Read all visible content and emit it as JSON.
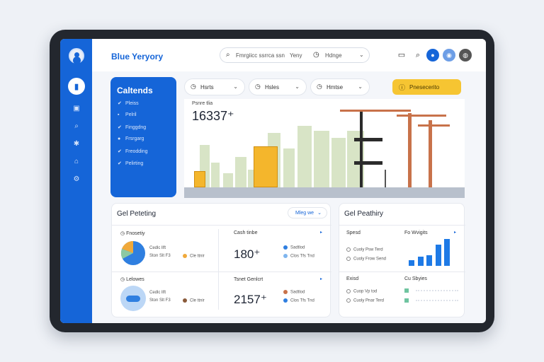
{
  "topbar": {
    "brand": "Blue Yeryory",
    "search": {
      "text": "Fmrgiicc ssrrca ssn",
      "filter_a": "Yeny",
      "filter_b": "Hdnge"
    }
  },
  "categories": {
    "title": "Caltends",
    "items": [
      "Pleiss",
      "Pelril",
      "Finggdng",
      "Frsrgarg",
      "Freodding",
      "Pelirting"
    ]
  },
  "filters": [
    {
      "label": "Hsrts"
    },
    {
      "label": "Hsles"
    },
    {
      "label": "Hmtse"
    }
  ],
  "report_button": {
    "label": "Pnesecerito"
  },
  "hero": {
    "label": "Psnre tlia",
    "value": "16337⁺"
  },
  "left_panel": {
    "title": "Gel Peteting",
    "dropdown": "Mleg we",
    "top": {
      "subtitle": "Fnosetiy",
      "info_line1": "Cedlc llft",
      "info_line2": "Ston Slt F3",
      "legend1": "Cle ttnir",
      "stat_title": "Cash tinbe",
      "stat_value": "180⁺",
      "legend_a": "Sadtlod",
      "legend_b": "Clos Tfs Tnd"
    },
    "bottom": {
      "subtitle": "Lelowes",
      "info_line1": "Cedlc llft",
      "info_line2": "Ston Slt F3",
      "legend1": "Cle ttnir",
      "stat_title": "Tsnet Genlcrt",
      "stat_value": "2157⁺",
      "legend_a": "Sadtlod",
      "legend_b": "Clos Tfs Tnd"
    }
  },
  "right_panel": {
    "title": "Gel Peathiry",
    "top": {
      "col_a": "Spesd",
      "col_b": "Fo Wvigits",
      "item1": "Cuoly Psw Terd",
      "item2": "Cuoly Frow Send"
    },
    "bottom": {
      "col_a": "Exisd",
      "col_b": "Cu Sbyies",
      "item1": "Cuop Vp tod",
      "item2": "Cuoly Pnar Terd"
    }
  },
  "colors": {
    "primary": "#1565d8",
    "accent": "#f6c532",
    "bar": "#1e7ae6"
  },
  "chart_data": {
    "type": "bar",
    "values": [
      3,
      5,
      6,
      12,
      15
    ]
  }
}
